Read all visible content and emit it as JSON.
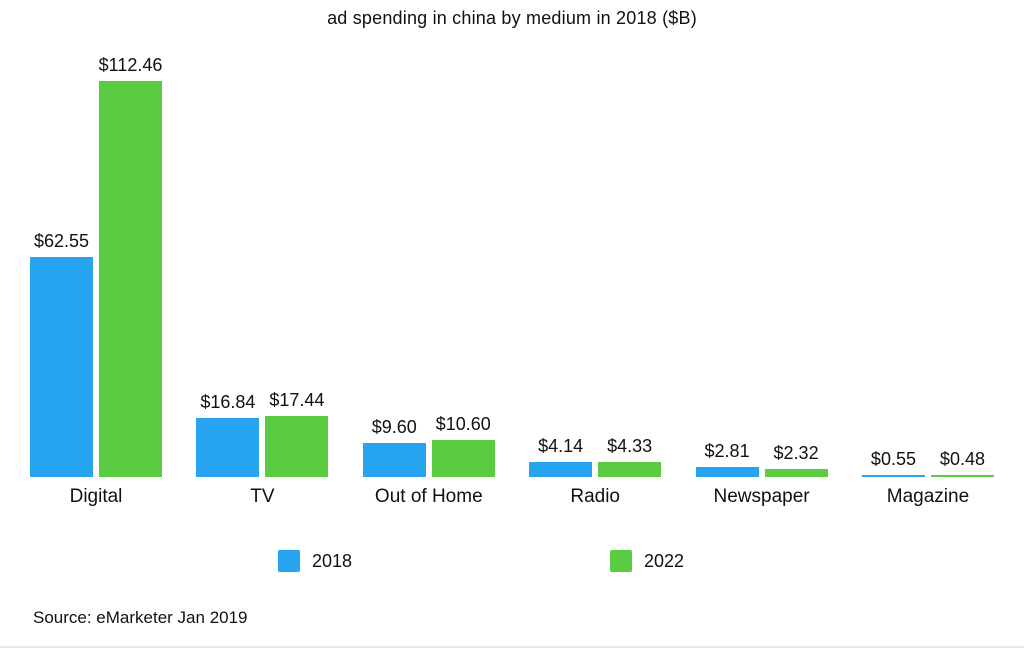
{
  "title": "ad spending in china by medium in 2018 ($B)",
  "source_note": "Source: eMarketer Jan 2019",
  "colors": {
    "bar_2018": "#27A4F0",
    "bar_2022": "#5BCB41",
    "text": "#111111",
    "divider": "#e9e9e9"
  },
  "legend": [
    {
      "label": "2018",
      "color": "#27A4F0"
    },
    {
      "label": "2022",
      "color": "#5BCB41"
    }
  ],
  "chart_data": {
    "type": "bar",
    "title": "ad spending in china by medium in 2018 ($B)",
    "categories": [
      "Digital",
      "TV",
      "Out of Home",
      "Radio",
      "Newspaper",
      "Magazine"
    ],
    "series": [
      {
        "name": "2018",
        "color": "#27A4F0",
        "values": [
          62.55,
          16.84,
          9.6,
          4.14,
          2.81,
          0.55
        ]
      },
      {
        "name": "2022",
        "color": "#5BCB41",
        "values": [
          112.46,
          17.44,
          10.6,
          4.33,
          2.32,
          0.48
        ]
      }
    ],
    "value_labels": [
      [
        "$62.55",
        "$16.84",
        "$9.60",
        "$4.14",
        "$2.81",
        "$0.55"
      ],
      [
        "$112.46",
        "$17.44",
        "$10.60",
        "$4.33",
        "$2.32",
        "$0.48"
      ]
    ],
    "xlabel": "",
    "ylabel": "",
    "ylim": [
      0,
      112.46
    ],
    "grid": false,
    "axis_lines": false,
    "legend_position": "bottom"
  }
}
